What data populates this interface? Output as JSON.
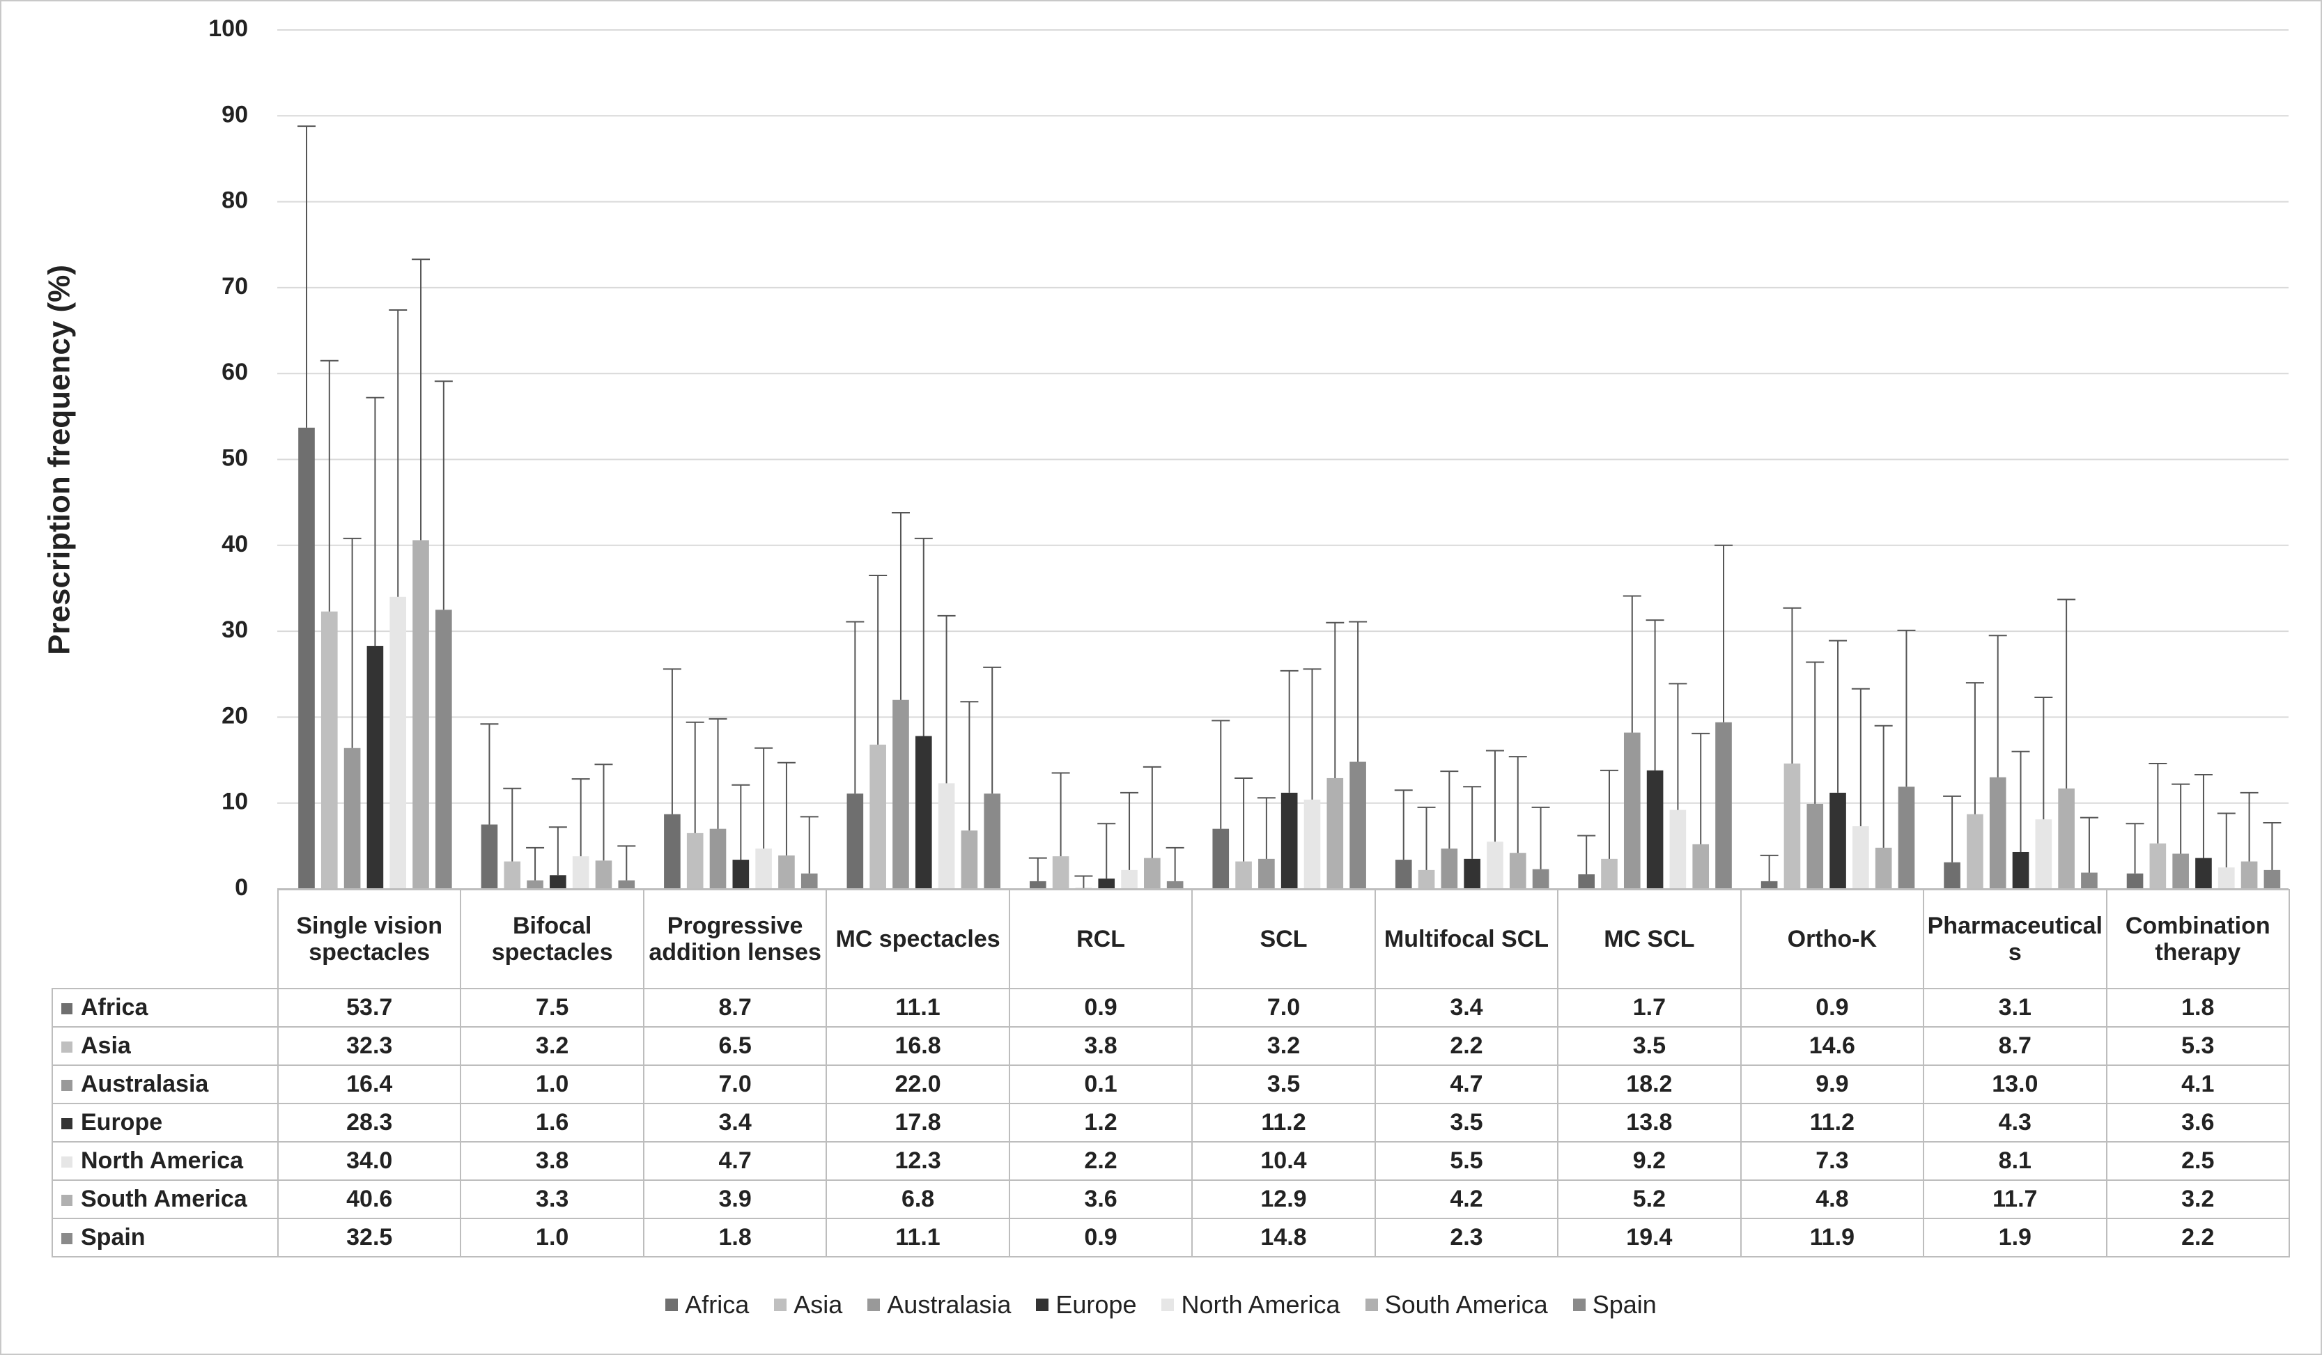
{
  "chart_data": {
    "type": "bar",
    "ylabel": "Prescription frequency (%)",
    "categories": [
      "Single vision spectacles",
      "Bifocal spectacles",
      "Progressive addition lenses",
      "MC spectacles",
      "RCL",
      "SCL",
      "Multifocal SCL",
      "MC SCL",
      "Ortho-K",
      "Pharmaceuticals",
      "Combination therapy"
    ],
    "ylim": [
      0,
      100
    ],
    "yticks": [
      0,
      10,
      20,
      30,
      40,
      50,
      60,
      70,
      80,
      90,
      100
    ],
    "grid": true,
    "series": [
      {
        "name": "Africa",
        "color": "#6f6f6f",
        "values": [
          53.7,
          7.5,
          8.7,
          11.1,
          0.9,
          7.0,
          3.4,
          1.7,
          0.9,
          3.1,
          1.8
        ],
        "value_labels": [
          "53.7",
          "7.5",
          "8.7",
          "11.1",
          "0.9",
          "7.0",
          "3.4",
          "1.7",
          "0.9",
          "3.1",
          "1.8"
        ],
        "errors": [
          35.1,
          11.7,
          16.9,
          20.0,
          2.7,
          12.6,
          8.1,
          4.5,
          3.0,
          7.7,
          5.8
        ]
      },
      {
        "name": "Asia",
        "color": "#bfbfbf",
        "values": [
          32.3,
          3.2,
          6.5,
          16.8,
          3.8,
          3.2,
          2.2,
          3.5,
          14.6,
          8.7,
          5.3
        ],
        "value_labels": [
          "32.3",
          "3.2",
          "6.5",
          "16.8",
          "3.8",
          "3.2",
          "2.2",
          "3.5",
          "14.6",
          "8.7",
          "5.3"
        ],
        "errors": [
          29.2,
          8.5,
          12.9,
          19.7,
          9.7,
          9.7,
          7.3,
          10.3,
          18.1,
          15.3,
          9.3
        ]
      },
      {
        "name": "Australasia",
        "color": "#999999",
        "values": [
          16.4,
          1.0,
          7.0,
          22.0,
          0.1,
          3.5,
          4.7,
          18.2,
          9.9,
          13.0,
          4.1
        ],
        "value_labels": [
          "16.4",
          "1.0",
          "7.0",
          "22.0",
          "0.1",
          "3.5",
          "4.7",
          "18.2",
          "9.9",
          "13.0",
          "4.1"
        ],
        "errors": [
          24.4,
          3.8,
          12.8,
          21.8,
          1.4,
          7.1,
          9.0,
          15.9,
          16.5,
          16.5,
          8.1
        ]
      },
      {
        "name": "Europe",
        "color": "#333333",
        "values": [
          28.3,
          1.6,
          3.4,
          17.8,
          1.2,
          11.2,
          3.5,
          13.8,
          11.2,
          4.3,
          3.6
        ],
        "value_labels": [
          "28.3",
          "1.6",
          "3.4",
          "17.8",
          "1.2",
          "11.2",
          "3.5",
          "13.8",
          "11.2",
          "4.3",
          "3.6"
        ],
        "errors": [
          28.9,
          5.6,
          8.7,
          23.0,
          6.4,
          14.2,
          8.4,
          17.5,
          17.7,
          11.7,
          9.7
        ]
      },
      {
        "name": "North America",
        "color": "#e6e6e6",
        "values": [
          34.0,
          3.8,
          4.7,
          12.3,
          2.2,
          10.4,
          5.5,
          9.2,
          7.3,
          8.1,
          2.5
        ],
        "value_labels": [
          "34.0",
          "3.8",
          "4.7",
          "12.3",
          "2.2",
          "10.4",
          "5.5",
          "9.2",
          "7.3",
          "8.1",
          "2.5"
        ],
        "errors": [
          33.4,
          9.0,
          11.7,
          19.5,
          9.0,
          15.2,
          10.6,
          14.7,
          16.0,
          14.2,
          6.3
        ]
      },
      {
        "name": "South America",
        "color": "#b0b0b0",
        "values": [
          40.6,
          3.3,
          3.9,
          6.8,
          3.6,
          12.9,
          4.2,
          5.2,
          4.8,
          11.7,
          3.2
        ],
        "value_labels": [
          "40.6",
          "3.3",
          "3.9",
          "6.8",
          "3.6",
          "12.9",
          "4.2",
          "5.2",
          "4.8",
          "11.7",
          "3.2"
        ],
        "errors": [
          32.7,
          11.2,
          10.8,
          15.0,
          10.6,
          18.1,
          11.2,
          12.9,
          14.2,
          22.0,
          8.0
        ]
      },
      {
        "name": "Spain",
        "color": "#8a8a8a",
        "values": [
          32.5,
          1.0,
          1.8,
          11.1,
          0.9,
          14.8,
          2.3,
          19.4,
          11.9,
          1.9,
          2.2
        ],
        "value_labels": [
          "32.5",
          "1.0",
          "1.8",
          "11.1",
          "0.9",
          "14.8",
          "2.3",
          "19.4",
          "11.9",
          "1.9",
          "2.2"
        ],
        "errors": [
          26.6,
          4.0,
          6.6,
          14.7,
          3.9,
          16.3,
          7.2,
          20.6,
          18.2,
          6.4,
          5.5
        ]
      }
    ]
  }
}
